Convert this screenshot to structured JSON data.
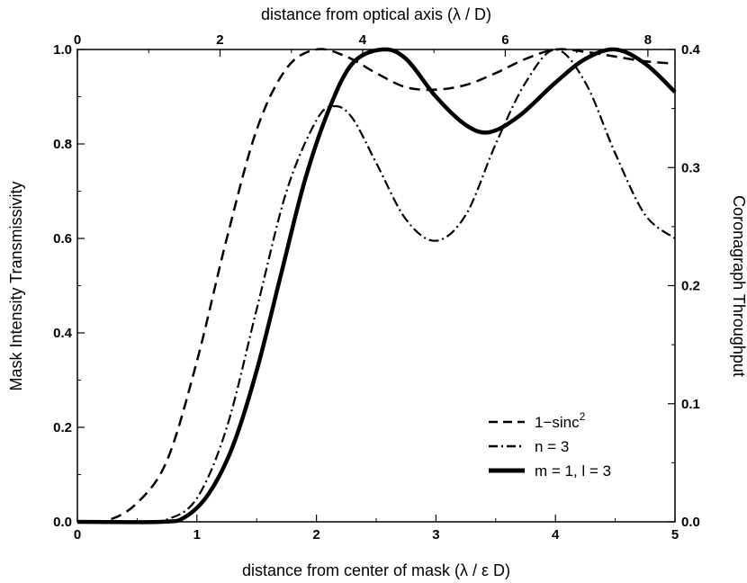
{
  "chart_data": {
    "type": "line",
    "xlabel": "distance from center of mask (λ / ε D)",
    "x2label": "distance from optical axis (λ / D)",
    "ylabel": "Mask Intensity Transmissivity",
    "y2label": "Coronagraph Throughput",
    "xlim": [
      0,
      5
    ],
    "x2lim": [
      0,
      8.38
    ],
    "ylim": [
      0,
      1.0
    ],
    "y2lim": [
      0,
      0.4
    ],
    "xticks": [
      "0",
      "1",
      "2",
      "3",
      "4",
      "5"
    ],
    "x2ticks": [
      "0",
      "2",
      "4",
      "6",
      "8"
    ],
    "yticks": [
      "0.0",
      "0.2",
      "0.4",
      "0.6",
      "0.8",
      "1.0"
    ],
    "y2ticks": [
      "0.0",
      "0.1",
      "0.2",
      "0.3",
      "0.4"
    ],
    "grid": false,
    "legend_position": "lower-right",
    "series": [
      {
        "name": "1−sinc",
        "name_sup": "2",
        "style": "dashed",
        "x": [
          0,
          0.25,
          0.5,
          0.75,
          1.0,
          1.25,
          1.5,
          1.75,
          2.0,
          2.25,
          2.5,
          2.75,
          3.0,
          3.25,
          3.5,
          3.75,
          4.0,
          4.25,
          4.5,
          4.75,
          5.0
        ],
        "y": [
          0,
          0.003,
          0.04,
          0.13,
          0.34,
          0.6,
          0.83,
          0.96,
          1.0,
          0.985,
          0.95,
          0.92,
          0.915,
          0.925,
          0.95,
          0.98,
          1.0,
          0.995,
          0.985,
          0.975,
          0.97
        ]
      },
      {
        "name": "n = 3",
        "style": "dash-dot",
        "x": [
          0,
          0.5,
          0.75,
          1.0,
          1.25,
          1.5,
          1.75,
          2.0,
          2.15,
          2.3,
          2.5,
          2.75,
          3.0,
          3.25,
          3.5,
          3.75,
          4.0,
          4.25,
          4.5,
          4.75,
          5.0
        ],
        "y": [
          0,
          0.0,
          0.005,
          0.05,
          0.2,
          0.45,
          0.7,
          0.85,
          0.88,
          0.855,
          0.76,
          0.64,
          0.595,
          0.65,
          0.8,
          0.93,
          1.0,
          0.93,
          0.78,
          0.65,
          0.6
        ]
      },
      {
        "name": "m = 1, l = 3",
        "style": "solid-thick",
        "x": [
          0,
          0.7,
          0.9,
          1.1,
          1.3,
          1.5,
          1.7,
          1.9,
          2.1,
          2.3,
          2.55,
          2.75,
          3.0,
          3.25,
          3.45,
          3.7,
          4.0,
          4.25,
          4.5,
          4.75,
          5.0
        ],
        "y": [
          0,
          0.0,
          0.01,
          0.06,
          0.16,
          0.32,
          0.52,
          0.72,
          0.87,
          0.97,
          1.0,
          0.98,
          0.9,
          0.84,
          0.825,
          0.86,
          0.93,
          0.98,
          1.0,
          0.97,
          0.91
        ]
      }
    ]
  }
}
